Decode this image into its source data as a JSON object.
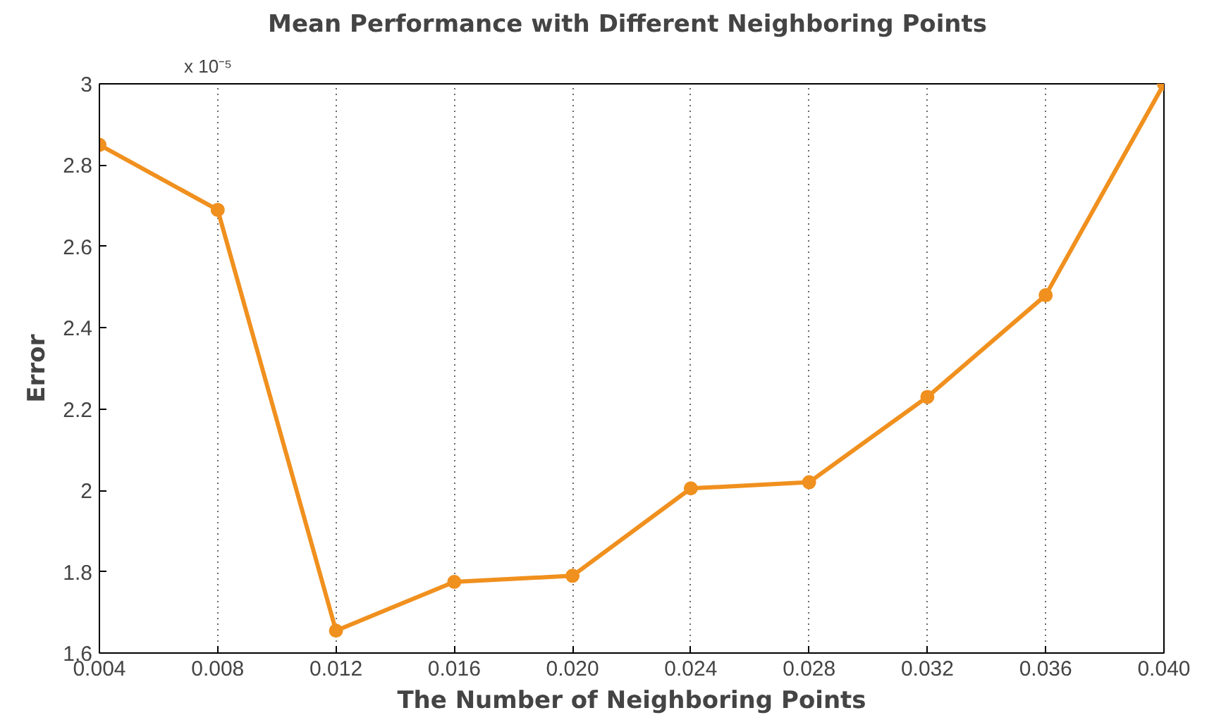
{
  "chart_data": {
    "type": "line",
    "title": "Mean  Performance with Different Neighboring Points",
    "xlabel": "The Number of Neighboring Points",
    "ylabel": "Error",
    "annotations": [
      "x 10⁻⁵"
    ],
    "x": [
      0.004,
      0.008,
      0.012,
      0.016,
      0.02,
      0.024,
      0.028,
      0.032,
      0.036,
      0.04
    ],
    "series": [
      {
        "color": "#f0901e",
        "values": [
          2.85,
          2.69,
          1.655,
          1.775,
          1.79,
          2.005,
          2.02,
          2.23,
          2.48,
          3.0
        ]
      }
    ],
    "xlim": [
      0.004,
      0.04
    ],
    "ylim": [
      1.6,
      3.0
    ],
    "xticks": [
      0.004,
      0.008,
      0.012,
      0.016,
      {
        "value": 0.02,
        "label": "0.020"
      },
      0.024,
      0.028,
      0.032,
      0.036,
      {
        "value": 0.04,
        "label": "0.040"
      }
    ],
    "yticks": [
      1.6,
      1.8,
      2,
      2.2,
      2.4,
      2.6,
      2.8,
      3
    ],
    "grid": "x",
    "marker": "circle",
    "line_style": "solid"
  }
}
